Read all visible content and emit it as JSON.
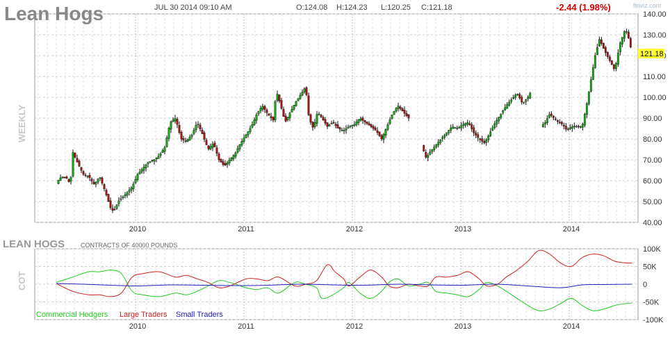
{
  "chart_data": [
    {
      "type": "candlestick",
      "title": "Lean Hogs",
      "timeframe": "WEEKLY",
      "datetime": "JUL 30 2014 09:10 AM",
      "ohlc_labels": {
        "open": "O:124.08",
        "high": "H:124.23",
        "low": "L:120.25",
        "close": "C:121.18"
      },
      "change": "-2.44 (1.98%)",
      "last_price": "121.18",
      "watermark": "finviz.com",
      "ylim": [
        40,
        140
      ],
      "y_ticks": [
        "140.00",
        "130.00",
        "120.00",
        "110.00",
        "100.00",
        "90.00",
        "80.00",
        "70.00",
        "60.00",
        "50.00",
        "40.00"
      ],
      "x_tick_labels": [
        "2010",
        "2011",
        "2012",
        "2013",
        "2014"
      ],
      "grid": true,
      "colors": {
        "up": "#11aa11",
        "down": "#aa1111",
        "highlight": "#ffff33",
        "change": "#d40000"
      },
      "close_path": [
        [
          2009.25,
          59
        ],
        [
          2009.3,
          62
        ],
        [
          2009.35,
          61
        ],
        [
          2009.38,
          58
        ],
        [
          2009.4,
          74
        ],
        [
          2009.45,
          68
        ],
        [
          2009.5,
          63
        ],
        [
          2009.55,
          62
        ],
        [
          2009.6,
          58
        ],
        [
          2009.65,
          62
        ],
        [
          2009.7,
          55
        ],
        [
          2009.75,
          47
        ],
        [
          2009.78,
          45
        ],
        [
          2009.82,
          50
        ],
        [
          2009.86,
          52
        ],
        [
          2009.9,
          54
        ],
        [
          2009.95,
          57
        ],
        [
          2010.0,
          63
        ],
        [
          2010.05,
          66
        ],
        [
          2010.1,
          69
        ],
        [
          2010.15,
          70
        ],
        [
          2010.2,
          72
        ],
        [
          2010.25,
          76
        ],
        [
          2010.3,
          88
        ],
        [
          2010.35,
          90
        ],
        [
          2010.4,
          80
        ],
        [
          2010.45,
          79
        ],
        [
          2010.5,
          82
        ],
        [
          2010.55,
          88
        ],
        [
          2010.6,
          82
        ],
        [
          2010.65,
          75
        ],
        [
          2010.7,
          78
        ],
        [
          2010.75,
          70
        ],
        [
          2010.8,
          67
        ],
        [
          2010.85,
          70
        ],
        [
          2010.9,
          73
        ],
        [
          2010.95,
          78
        ],
        [
          2011.0,
          82
        ],
        [
          2011.05,
          86
        ],
        [
          2011.1,
          92
        ],
        [
          2011.15,
          96
        ],
        [
          2011.2,
          92
        ],
        [
          2011.25,
          89
        ],
        [
          2011.28,
          103
        ],
        [
          2011.32,
          96
        ],
        [
          2011.36,
          88
        ],
        [
          2011.4,
          92
        ],
        [
          2011.45,
          97
        ],
        [
          2011.5,
          101
        ],
        [
          2011.55,
          105
        ],
        [
          2011.58,
          90
        ],
        [
          2011.62,
          85
        ],
        [
          2011.66,
          93
        ],
        [
          2011.7,
          90
        ],
        [
          2011.75,
          86
        ],
        [
          2011.8,
          88
        ],
        [
          2011.85,
          85
        ],
        [
          2011.9,
          84
        ],
        [
          2011.95,
          86
        ],
        [
          2012.0,
          87
        ],
        [
          2012.05,
          90
        ],
        [
          2012.1,
          88
        ],
        [
          2012.15,
          86
        ],
        [
          2012.2,
          84
        ],
        [
          2012.25,
          80
        ],
        [
          2012.3,
          86
        ],
        [
          2012.35,
          92
        ],
        [
          2012.4,
          96
        ],
        [
          2012.45,
          93
        ],
        [
          2012.5,
          90
        ]
      ],
      "close_path_2": [
        [
          2012.62,
          77
        ],
        [
          2012.66,
          71
        ],
        [
          2012.7,
          74
        ],
        [
          2012.75,
          77
        ],
        [
          2012.8,
          80
        ],
        [
          2012.85,
          83
        ],
        [
          2012.9,
          86
        ],
        [
          2012.95,
          85
        ],
        [
          2013.0,
          87
        ],
        [
          2013.05,
          88
        ],
        [
          2013.1,
          83
        ],
        [
          2013.15,
          80
        ],
        [
          2013.2,
          78
        ],
        [
          2013.25,
          83
        ],
        [
          2013.3,
          88
        ],
        [
          2013.35,
          92
        ],
        [
          2013.4,
          96
        ],
        [
          2013.45,
          99
        ],
        [
          2013.5,
          102
        ],
        [
          2013.55,
          97
        ],
        [
          2013.6,
          100
        ],
        [
          2013.62,
          102
        ]
      ],
      "close_path_3": [
        [
          2013.72,
          86
        ],
        [
          2013.76,
          88
        ],
        [
          2013.8,
          92
        ],
        [
          2013.84,
          90
        ],
        [
          2013.88,
          88
        ],
        [
          2013.92,
          87
        ],
        [
          2013.96,
          84
        ],
        [
          2014.0,
          86
        ],
        [
          2014.05,
          86
        ],
        [
          2014.1,
          86
        ],
        [
          2014.14,
          96
        ],
        [
          2014.18,
          108
        ],
        [
          2014.22,
          120
        ],
        [
          2014.26,
          128
        ],
        [
          2014.3,
          123
        ],
        [
          2014.35,
          118
        ],
        [
          2014.4,
          113
        ],
        [
          2014.45,
          126
        ],
        [
          2014.5,
          133
        ],
        [
          2014.53,
          128
        ],
        [
          2014.56,
          121
        ]
      ]
    },
    {
      "type": "line",
      "title": "LEAN HOGS",
      "subtitle": "CONTRACTS OF 40000 POUNDS",
      "ylabel": "COT",
      "ylim": [
        -100000,
        100000
      ],
      "y_ticks": [
        "100K",
        "50K",
        "0",
        "-50K",
        "-100K"
      ],
      "x_tick_labels": [
        "2010",
        "2011",
        "2012",
        "2013",
        "2014"
      ],
      "legend_position": "bottom-left",
      "series": [
        {
          "name": "Commercial Hedgers",
          "color": "#22cc22",
          "values": [
            [
              2009.25,
              5000
            ],
            [
              2009.4,
              20000
            ],
            [
              2009.55,
              35000
            ],
            [
              2009.65,
              35000
            ],
            [
              2009.75,
              40000
            ],
            [
              2009.85,
              30000
            ],
            [
              2009.95,
              -20000
            ],
            [
              2010.05,
              -30000
            ],
            [
              2010.2,
              -35000
            ],
            [
              2010.35,
              -25000
            ],
            [
              2010.45,
              -30000
            ],
            [
              2010.55,
              -20000
            ],
            [
              2010.65,
              -5000
            ],
            [
              2010.75,
              10000
            ],
            [
              2010.85,
              5000
            ],
            [
              2011.0,
              -10000
            ],
            [
              2011.1,
              -15000
            ],
            [
              2011.2,
              -10000
            ],
            [
              2011.3,
              -25000
            ],
            [
              2011.45,
              5000
            ],
            [
              2011.55,
              0
            ],
            [
              2011.65,
              -10000
            ],
            [
              2011.7,
              -40000
            ],
            [
              2011.8,
              -30000
            ],
            [
              2011.9,
              -10000
            ],
            [
              2011.95,
              5000
            ],
            [
              2012.05,
              -25000
            ],
            [
              2012.15,
              -40000
            ],
            [
              2012.25,
              -20000
            ],
            [
              2012.32,
              5000
            ],
            [
              2012.4,
              15000
            ],
            [
              2012.5,
              -5000
            ],
            [
              2012.6,
              0
            ],
            [
              2012.68,
              5000
            ],
            [
              2012.75,
              -20000
            ],
            [
              2012.85,
              -25000
            ],
            [
              2012.95,
              -30000
            ],
            [
              2013.05,
              -35000
            ],
            [
              2013.15,
              -15000
            ],
            [
              2013.22,
              5000
            ],
            [
              2013.32,
              -5000
            ],
            [
              2013.4,
              -20000
            ],
            [
              2013.5,
              -40000
            ],
            [
              2013.6,
              -60000
            ],
            [
              2013.7,
              -75000
            ],
            [
              2013.8,
              -70000
            ],
            [
              2013.9,
              -55000
            ],
            [
              2014.0,
              -40000
            ],
            [
              2014.1,
              -60000
            ],
            [
              2014.2,
              -75000
            ],
            [
              2014.3,
              -70000
            ],
            [
              2014.4,
              -60000
            ],
            [
              2014.5,
              -55000
            ],
            [
              2014.56,
              -53000
            ]
          ]
        },
        {
          "name": "Large Traders",
          "color": "#cc2222",
          "values": [
            [
              2009.25,
              2000
            ],
            [
              2009.4,
              -20000
            ],
            [
              2009.55,
              -30000
            ],
            [
              2009.65,
              -30000
            ],
            [
              2009.75,
              -35000
            ],
            [
              2009.85,
              -25000
            ],
            [
              2009.95,
              20000
            ],
            [
              2010.05,
              30000
            ],
            [
              2010.2,
              35000
            ],
            [
              2010.35,
              20000
            ],
            [
              2010.45,
              25000
            ],
            [
              2010.55,
              15000
            ],
            [
              2010.65,
              5000
            ],
            [
              2010.75,
              -10000
            ],
            [
              2010.85,
              -5000
            ],
            [
              2011.0,
              15000
            ],
            [
              2011.1,
              15000
            ],
            [
              2011.2,
              10000
            ],
            [
              2011.3,
              20000
            ],
            [
              2011.45,
              -5000
            ],
            [
              2011.55,
              0
            ],
            [
              2011.65,
              10000
            ],
            [
              2011.75,
              55000
            ],
            [
              2011.82,
              35000
            ],
            [
              2011.9,
              15000
            ],
            [
              2011.95,
              -5000
            ],
            [
              2012.05,
              20000
            ],
            [
              2012.15,
              40000
            ],
            [
              2012.25,
              20000
            ],
            [
              2012.32,
              -5000
            ],
            [
              2012.4,
              -10000
            ],
            [
              2012.5,
              0
            ],
            [
              2012.6,
              -5000
            ],
            [
              2012.68,
              -5000
            ],
            [
              2012.75,
              20000
            ],
            [
              2012.85,
              20000
            ],
            [
              2012.95,
              25000
            ],
            [
              2013.05,
              35000
            ],
            [
              2013.15,
              15000
            ],
            [
              2013.22,
              -5000
            ],
            [
              2013.32,
              0
            ],
            [
              2013.4,
              20000
            ],
            [
              2013.5,
              40000
            ],
            [
              2013.6,
              65000
            ],
            [
              2013.7,
              95000
            ],
            [
              2013.8,
              85000
            ],
            [
              2013.9,
              60000
            ],
            [
              2014.0,
              50000
            ],
            [
              2014.1,
              75000
            ],
            [
              2014.2,
              85000
            ],
            [
              2014.3,
              80000
            ],
            [
              2014.4,
              65000
            ],
            [
              2014.5,
              60000
            ],
            [
              2014.56,
              60000
            ]
          ]
        },
        {
          "name": "Small Traders",
          "color": "#2222bb",
          "values": [
            [
              2009.25,
              2000
            ],
            [
              2009.5,
              0
            ],
            [
              2009.75,
              -3000
            ],
            [
              2010.0,
              -5000
            ],
            [
              2010.3,
              -2000
            ],
            [
              2010.6,
              -3000
            ],
            [
              2010.9,
              -4000
            ],
            [
              2011.2,
              -3000
            ],
            [
              2011.5,
              0
            ],
            [
              2011.8,
              -2000
            ],
            [
              2012.1,
              -3000
            ],
            [
              2012.4,
              0
            ],
            [
              2012.7,
              -2000
            ],
            [
              2013.0,
              -3000
            ],
            [
              2013.3,
              0
            ],
            [
              2013.6,
              -5000
            ],
            [
              2013.9,
              -10000
            ],
            [
              2014.1,
              -2000
            ],
            [
              2014.3,
              -1000
            ],
            [
              2014.56,
              0
            ]
          ]
        }
      ]
    }
  ]
}
